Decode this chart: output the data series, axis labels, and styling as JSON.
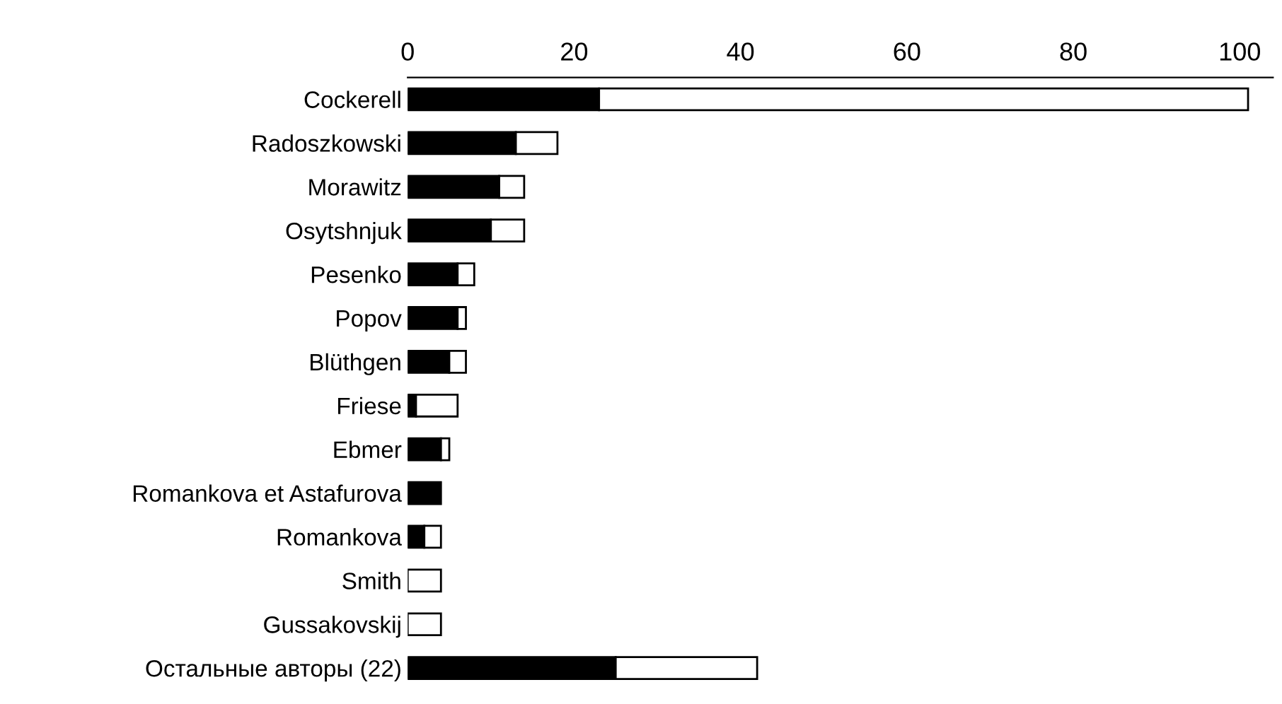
{
  "chart_data": {
    "type": "bar",
    "orientation": "horizontal",
    "stacked": true,
    "categories": [
      "Cockerell",
      "Radoszkowski",
      "Morawitz",
      "Osytshnjuk",
      "Pesenko",
      "Popov",
      "Blüthgen",
      "Friese",
      "Ebmer",
      "Romankova et Astafurova",
      "Romankova",
      "Smith",
      "Gussakovskij",
      "Остальные авторы (22)"
    ],
    "series": [
      {
        "color": "#000000",
        "values": [
          23,
          13,
          11,
          10,
          6,
          6,
          5,
          1,
          4,
          4,
          2,
          0,
          0,
          25
        ]
      },
      {
        "color": "#ffffff",
        "values": [
          78,
          5,
          3,
          4,
          2,
          1,
          2,
          5,
          1,
          0,
          2,
          4,
          4,
          17
        ]
      }
    ],
    "xlim": [
      0,
      104
    ],
    "xticks": [
      0,
      20,
      40,
      60,
      80,
      100
    ],
    "grid": false
  }
}
